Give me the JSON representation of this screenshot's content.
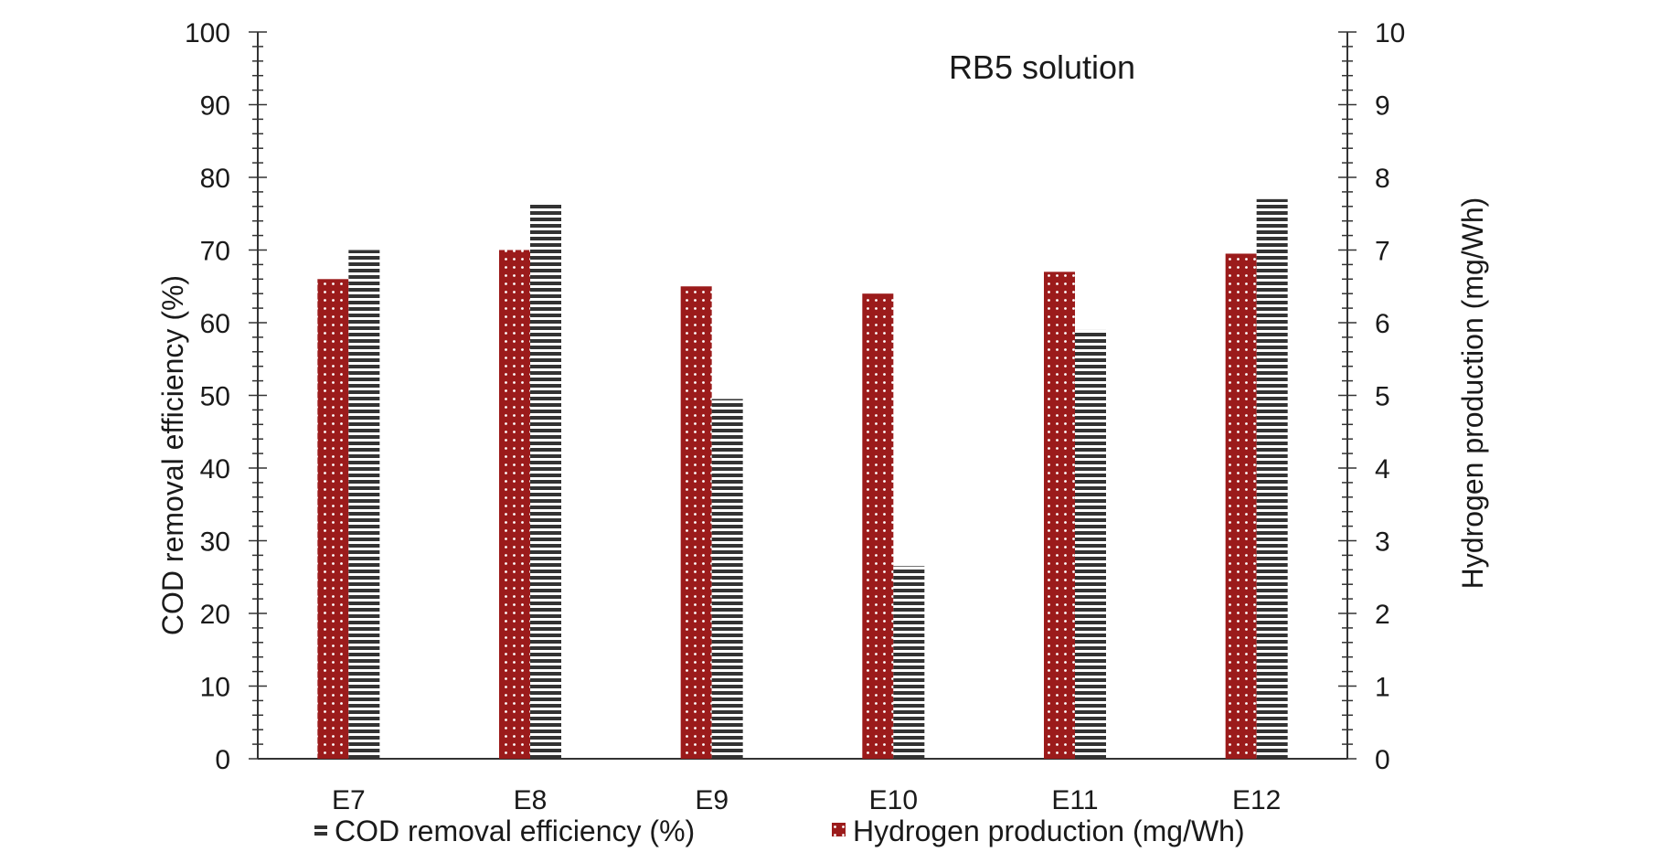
{
  "chart_data": {
    "type": "bar",
    "title": "RB5 solution",
    "categories": [
      "E7",
      "E8",
      "E9",
      "E10",
      "E11",
      "E12"
    ],
    "series": [
      {
        "name": "Hydrogen production (mg/Wh)",
        "axis": "right",
        "color": "#9b1b1b",
        "pattern": "dotted",
        "values": [
          6.6,
          7.0,
          6.5,
          6.4,
          6.7,
          6.95
        ]
      },
      {
        "name": "COD removal efficiency (%)",
        "axis": "left",
        "color": "#333333",
        "pattern": "horizontal-stripes",
        "values": [
          70.0,
          76.5,
          49.5,
          26.5,
          59.0,
          77.0
        ]
      }
    ],
    "y_left": {
      "label": "COD removal efficiency (%)",
      "ylim": [
        0,
        100
      ],
      "ticks": [
        "0",
        "10",
        "20",
        "30",
        "40",
        "50",
        "60",
        "70",
        "80",
        "90",
        "100"
      ]
    },
    "y_right": {
      "label": "Hydrogen production (mg/Wh)",
      "ylim": [
        0,
        10
      ],
      "ticks": [
        "0",
        "1",
        "2",
        "3",
        "4",
        "5",
        "6",
        "7",
        "8",
        "9",
        "10"
      ]
    },
    "grid": false,
    "legend": {
      "position": "bottom",
      "items": [
        {
          "label": "COD removal efficiency (%)",
          "series": 1
        },
        {
          "label": "Hydrogen production (mg/Wh)",
          "series": 0
        }
      ]
    }
  }
}
